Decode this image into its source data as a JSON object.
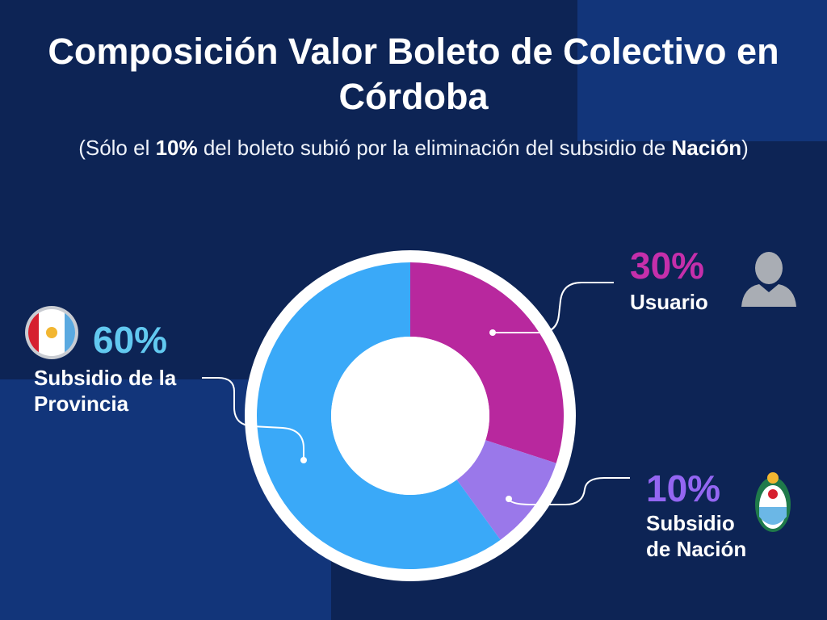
{
  "title": "Composición Valor Boleto de Colectivo en Córdoba",
  "subtitle_parts": [
    "(Sólo el ",
    "10%",
    " del boleto subió por la eliminación del subsidio de ",
    "Nación",
    ")"
  ],
  "chart_data": {
    "type": "pie",
    "donut": true,
    "categories": [
      "Usuario",
      "Subsidio de Nación",
      "Subsidio de la Provincia"
    ],
    "values": [
      30,
      10,
      60
    ],
    "value_labels": [
      "30%",
      "10%",
      "60%"
    ],
    "colors": [
      "#b8289e",
      "#9a78ea",
      "#3aa9f8"
    ]
  }
}
